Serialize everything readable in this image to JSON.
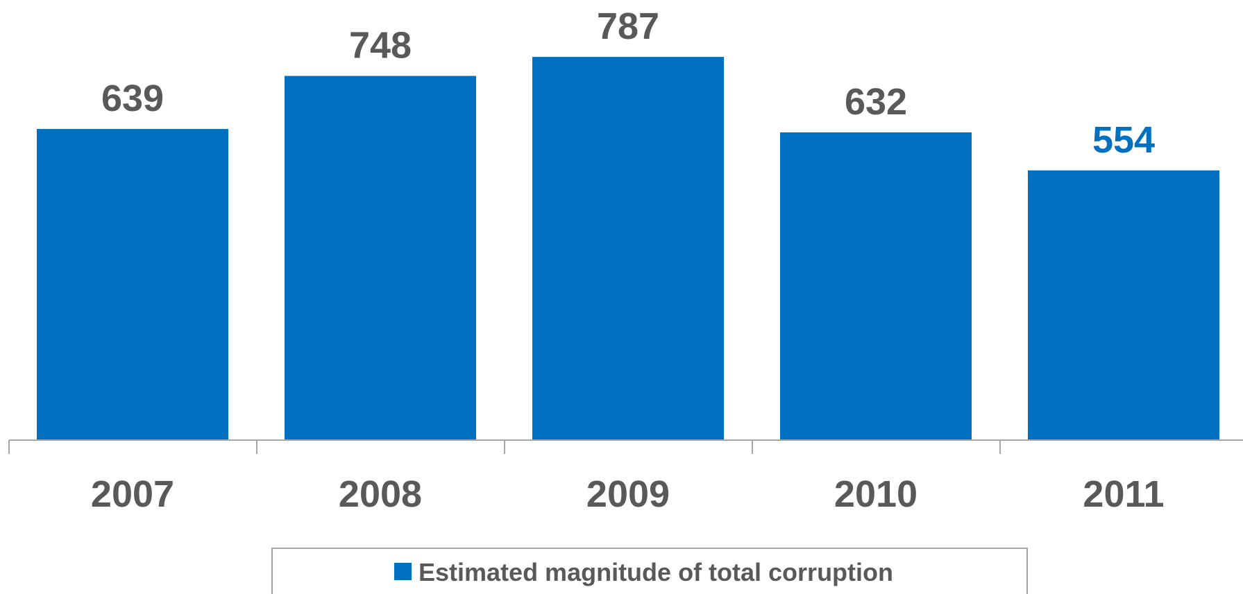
{
  "chart_data": {
    "type": "bar",
    "categories": [
      "2007",
      "2008",
      "2009",
      "2010",
      "2011"
    ],
    "series": [
      {
        "name": "Estimated magnitude of total corruption",
        "values": [
          639,
          748,
          787,
          632,
          554
        ]
      }
    ],
    "data_labels": [
      "639",
      "748",
      "787",
      "632",
      "554"
    ],
    "title": "",
    "xlabel": "",
    "ylabel": "",
    "ylim": [
      0,
      900
    ],
    "grid": false,
    "legend_position": "bottom",
    "colors": {
      "bar": "#0070C0",
      "label_default": "#595959",
      "label_highlight": "#0070C0",
      "axis": "#A6A6A6",
      "legend_border": "#A6A6A6"
    },
    "highlighted_category": "2011"
  }
}
